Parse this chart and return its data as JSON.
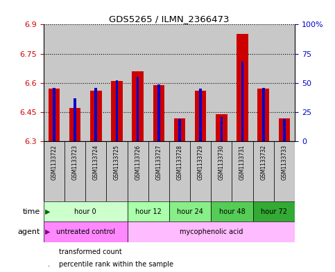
{
  "title": "GDS5265 / ILMN_2366473",
  "samples": [
    "GSM1133722",
    "GSM1133723",
    "GSM1133724",
    "GSM1133725",
    "GSM1133726",
    "GSM1133727",
    "GSM1133728",
    "GSM1133729",
    "GSM1133730",
    "GSM1133731",
    "GSM1133732",
    "GSM1133733"
  ],
  "transformed_count": [
    6.57,
    6.47,
    6.56,
    6.61,
    6.66,
    6.59,
    6.42,
    6.56,
    6.44,
    6.85,
    6.57,
    6.42
  ],
  "percentile_rank": [
    46,
    37,
    46,
    52,
    55,
    49,
    19,
    45,
    21,
    68,
    46,
    19
  ],
  "ymin": 6.3,
  "ymax": 6.9,
  "yticks": [
    6.3,
    6.45,
    6.6,
    6.75,
    6.9
  ],
  "ytick_labels": [
    "6.3",
    "6.45",
    "6.6",
    "6.75",
    "6.9"
  ],
  "right_yticks": [
    0,
    25,
    50,
    75,
    100
  ],
  "right_ytick_labels": [
    "0",
    "25",
    "50",
    "75",
    "100%"
  ],
  "bar_color_red": "#cc0000",
  "bar_color_blue": "#0000cc",
  "bar_width": 0.55,
  "blue_bar_width": 0.12,
  "time_groups": [
    {
      "label": "hour 0",
      "start": 0,
      "end": 3,
      "color": "#ccffcc"
    },
    {
      "label": "hour 12",
      "start": 4,
      "end": 5,
      "color": "#aaffaa"
    },
    {
      "label": "hour 24",
      "start": 6,
      "end": 7,
      "color": "#88ee88"
    },
    {
      "label": "hour 48",
      "start": 8,
      "end": 9,
      "color": "#55cc55"
    },
    {
      "label": "hour 72",
      "start": 10,
      "end": 11,
      "color": "#33aa33"
    }
  ],
  "agent_groups": [
    {
      "label": "untreated control",
      "start": 0,
      "end": 3,
      "color": "#ff88ff"
    },
    {
      "label": "mycophenolic acid",
      "start": 4,
      "end": 11,
      "color": "#ffbbff"
    }
  ],
  "sample_bg_color": "#c8c8c8",
  "grid_color": "black",
  "left_label_color": "#cc0000",
  "right_label_color": "#0000cc",
  "legend_red": "transformed count",
  "legend_blue": "percentile rank within the sample"
}
